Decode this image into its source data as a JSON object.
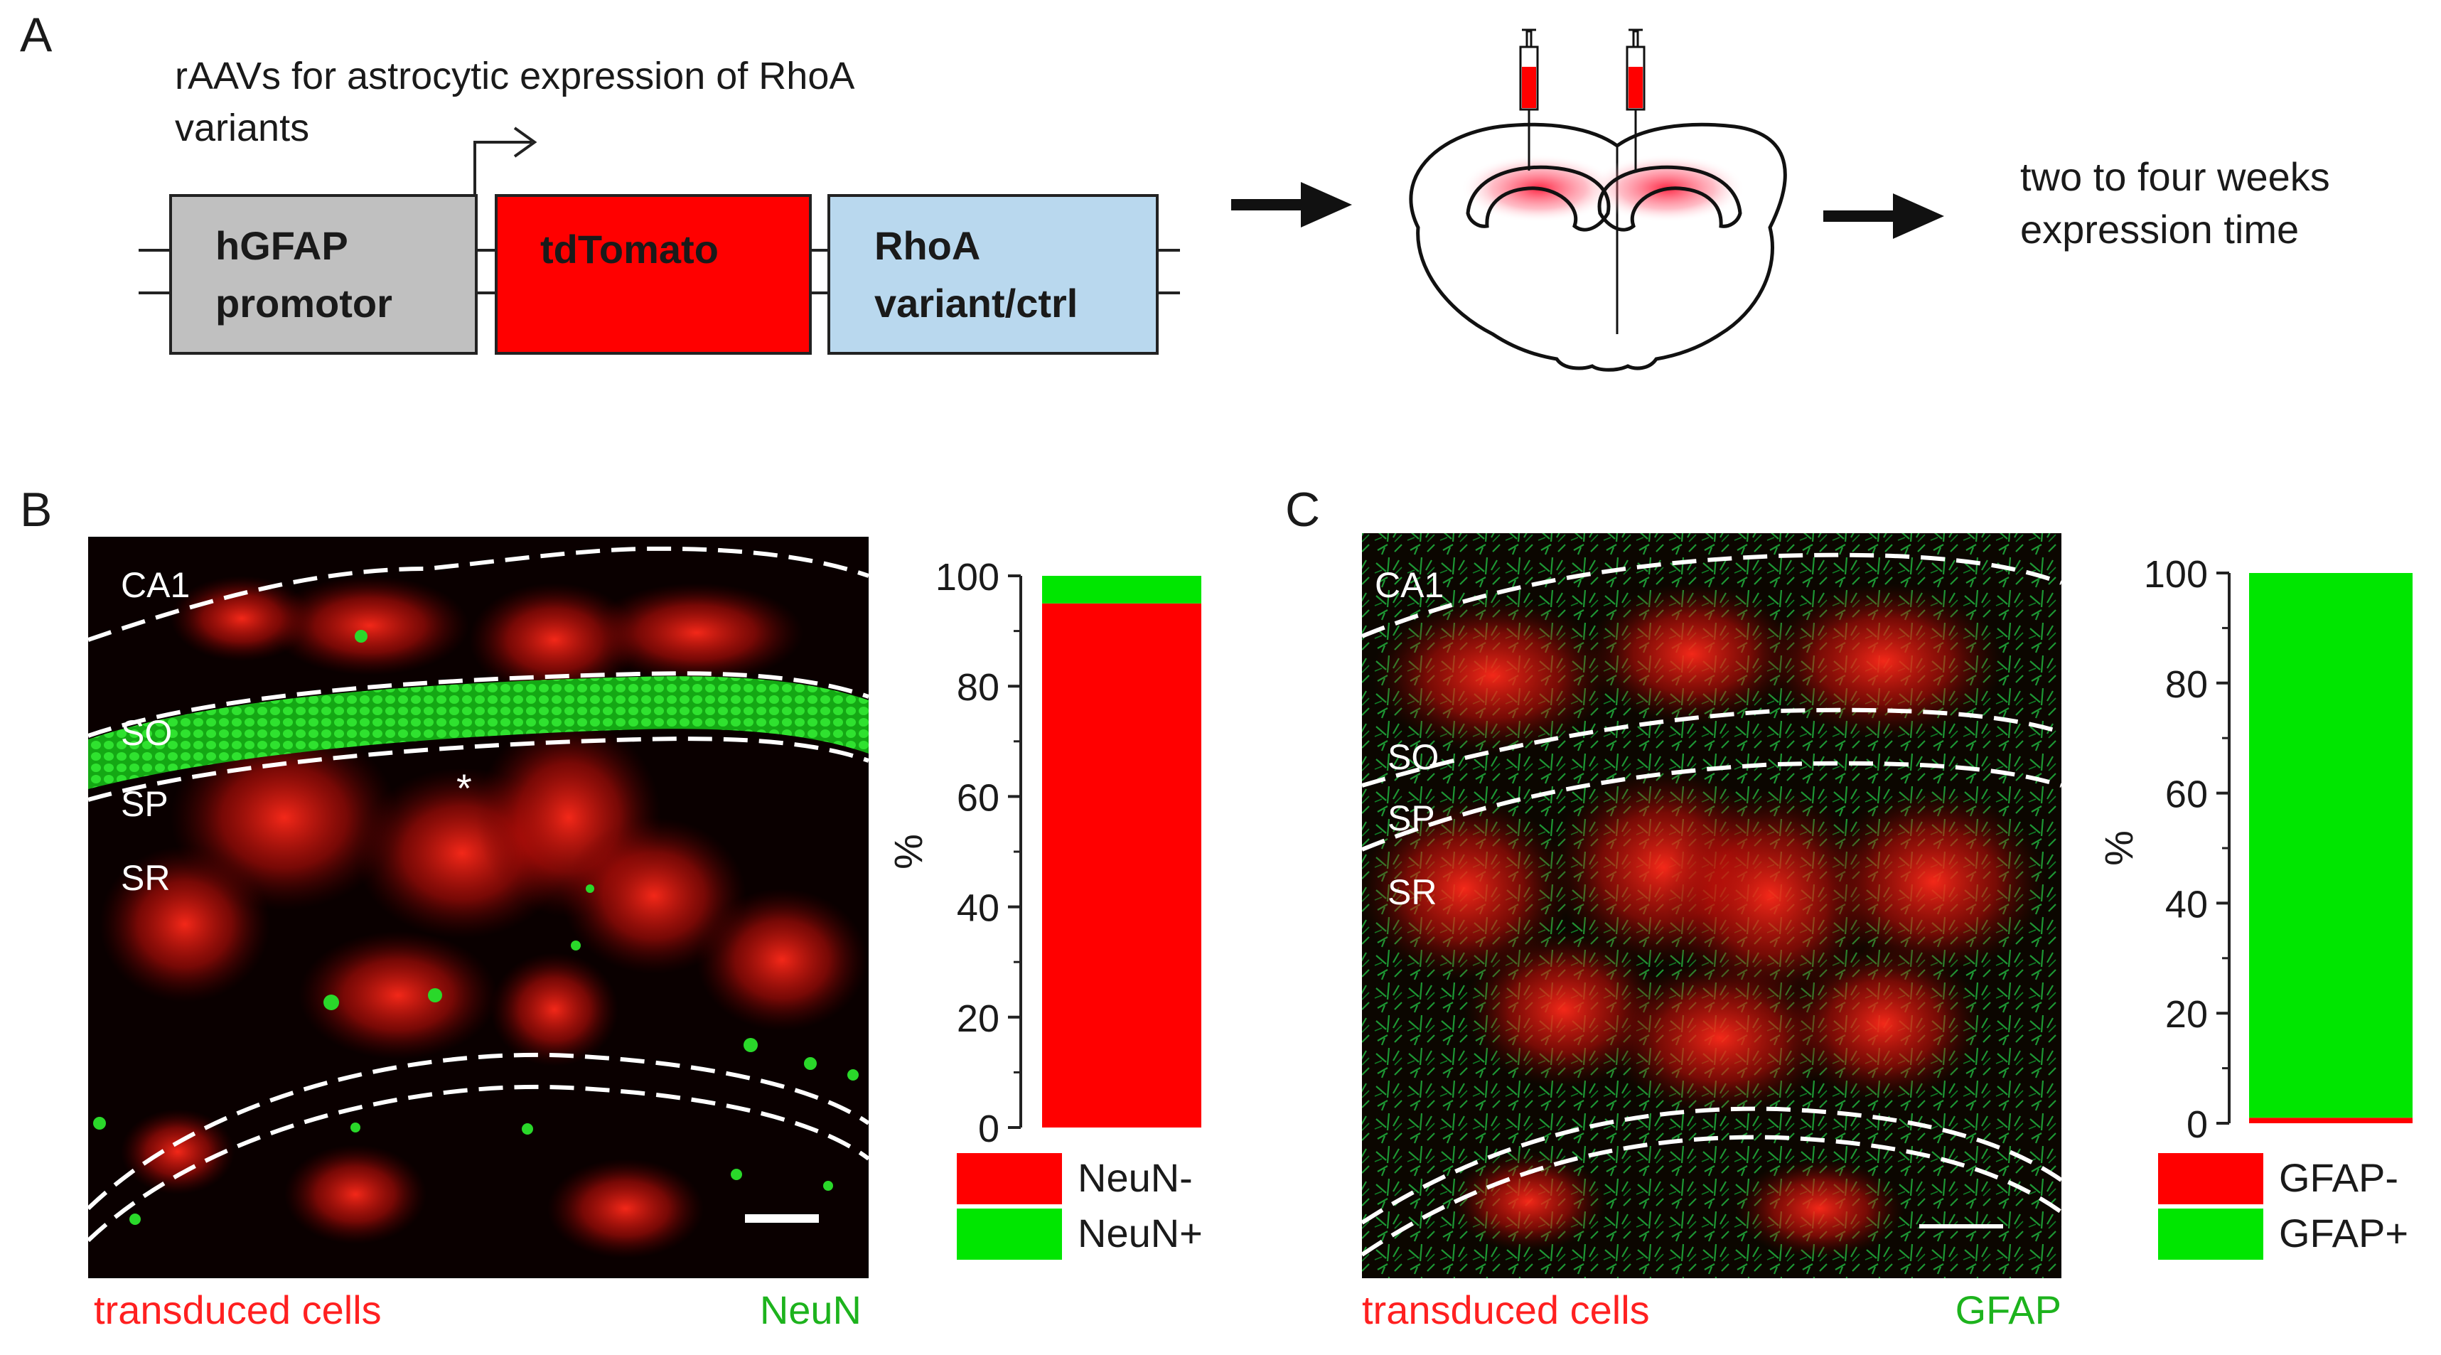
{
  "panel_a": {
    "label": "A",
    "title_line1": "rAAVs for astrocytic expression of RhoA",
    "title_line2": "variants",
    "box_promoter_line1": "hGFAP",
    "box_promoter_line2": "promotor",
    "box_reporter": "tdTomato",
    "box_variant_line1": "RhoA",
    "box_variant_line2": "variant/ctrl",
    "outcome_line1": "two to four weeks",
    "outcome_line2": "expression time"
  },
  "panel_b": {
    "label": "B",
    "layers": [
      "CA1",
      "SO",
      "SP",
      "SR"
    ],
    "asterisk": "*",
    "caption_left": "transduced cells",
    "caption_right": "NeuN"
  },
  "panel_c": {
    "label": "C",
    "layers": [
      "CA1",
      "SO",
      "SP",
      "SR"
    ],
    "caption_left": "transduced cells",
    "caption_right": "GFAP"
  },
  "colors": {
    "red": "#ff0000",
    "green": "#00e600",
    "promoter_box": "#c0c0c0",
    "variant_box": "#b9d8ee",
    "caption_red": "#ff2020",
    "caption_green": "#1db31d"
  },
  "chart_data": [
    {
      "type": "bar",
      "stacked": true,
      "ylabel": "%",
      "ylim": [
        0,
        100
      ],
      "yticks": [
        "0",
        "20",
        "40",
        "60",
        "80",
        "100"
      ],
      "series": [
        {
          "name": "NeuN-",
          "values": [
            95
          ],
          "color": "#ff0000"
        },
        {
          "name": "NeuN+",
          "values": [
            5
          ],
          "color": "#00e600"
        }
      ],
      "legend": "bottom"
    },
    {
      "type": "bar",
      "stacked": true,
      "ylabel": "%",
      "ylim": [
        0,
        100
      ],
      "yticks": [
        "0",
        "20",
        "40",
        "60",
        "80",
        "100"
      ],
      "series": [
        {
          "name": "GFAP-",
          "values": [
            1
          ],
          "color": "#ff0000"
        },
        {
          "name": "GFAP+",
          "values": [
            99
          ],
          "color": "#00e600"
        }
      ],
      "legend": "bottom"
    }
  ]
}
